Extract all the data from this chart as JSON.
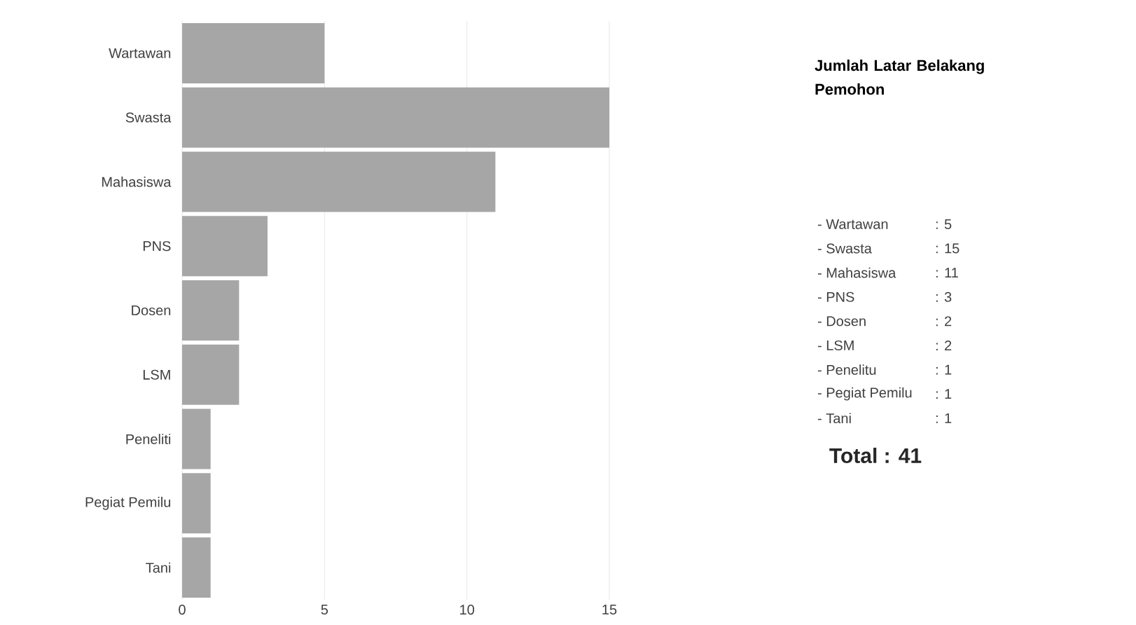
{
  "chart_data": [
    {
      "type": "bar",
      "orientation": "horizontal",
      "categories": [
        "Wartawan",
        "Swasta",
        "Mahasiswa",
        "PNS",
        "Dosen",
        "LSM",
        "Peneliti",
        "Pegiat Pemilu",
        "Tani"
      ],
      "values": [
        5,
        15,
        11,
        3,
        2,
        2,
        1,
        1,
        1
      ],
      "color": "#a6a6a6",
      "xlim": [
        0,
        15
      ],
      "xticks": [
        0,
        5,
        10,
        15
      ],
      "grid": "x"
    },
    {
      "type": "other",
      "title": "Jumlah Latar Belakang Pemohon",
      "annotations": [
        "- Wartawan",
        ": 5",
        "- Swasta",
        ": 15",
        "- Mahasiswa",
        ": 11",
        "- PNS",
        ": 3",
        "- Dosen",
        ": 2",
        "- LSM",
        ": 2",
        "- Penelitu",
        ": 1",
        "- Pegiat Pemilu",
        ": 1",
        "- Tani",
        ": 1",
        "Total : 41"
      ]
    }
  ]
}
